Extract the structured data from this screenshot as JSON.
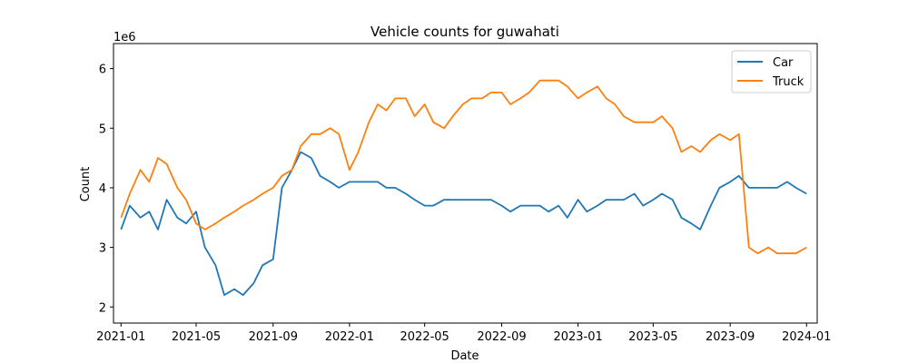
{
  "chart_data": {
    "type": "line",
    "title": "Vehicle counts for guwahati",
    "xlabel": "Date",
    "ylabel": "Count",
    "y_scale_label": "1e6",
    "x_range": [
      "2020-12-20",
      "2024-01-18"
    ],
    "ylim": [
      1.73,
      6.42
    ],
    "x_ticks": [
      "2021-01",
      "2021-05",
      "2021-09",
      "2022-01",
      "2022-05",
      "2022-09",
      "2023-01",
      "2023-05",
      "2023-09",
      "2024-01"
    ],
    "y_ticks": [
      2,
      3,
      4,
      5,
      6
    ],
    "legend_position": "top-right",
    "series": [
      {
        "name": "Car",
        "color": "#1f77b4",
        "dates": [
          "2021-01-01",
          "2021-01-15",
          "2021-02-01",
          "2021-02-15",
          "2021-03-01",
          "2021-03-15",
          "2021-04-01",
          "2021-04-15",
          "2021-05-01",
          "2021-05-15",
          "2021-06-01",
          "2021-06-15",
          "2021-07-01",
          "2021-07-15",
          "2021-08-01",
          "2021-08-15",
          "2021-09-01",
          "2021-09-15",
          "2021-10-01",
          "2021-10-15",
          "2021-11-01",
          "2021-11-15",
          "2021-12-01",
          "2021-12-15",
          "2022-01-01",
          "2022-01-15",
          "2022-02-01",
          "2022-02-15",
          "2022-03-01",
          "2022-03-15",
          "2022-04-01",
          "2022-04-15",
          "2022-05-01",
          "2022-05-15",
          "2022-06-01",
          "2022-06-15",
          "2022-07-01",
          "2022-07-15",
          "2022-08-01",
          "2022-08-15",
          "2022-09-01",
          "2022-09-15",
          "2022-10-01",
          "2022-10-15",
          "2022-11-01",
          "2022-11-15",
          "2022-12-01",
          "2022-12-15",
          "2023-01-01",
          "2023-01-15",
          "2023-02-01",
          "2023-02-15",
          "2023-03-01",
          "2023-03-15",
          "2023-04-01",
          "2023-04-15",
          "2023-05-01",
          "2023-05-15",
          "2023-06-01",
          "2023-06-15",
          "2023-07-01",
          "2023-07-15",
          "2023-08-01",
          "2023-08-15",
          "2023-09-01",
          "2023-09-15",
          "2023-10-01",
          "2023-10-15",
          "2023-11-01",
          "2023-11-15",
          "2023-12-01",
          "2023-12-15",
          "2024-01-01"
        ],
        "values": [
          3.3,
          3.7,
          3.5,
          3.6,
          3.3,
          3.8,
          3.5,
          3.4,
          3.6,
          3.0,
          2.7,
          2.2,
          2.3,
          2.2,
          2.4,
          2.7,
          2.8,
          4.0,
          4.3,
          4.6,
          4.5,
          4.2,
          4.1,
          4.0,
          4.1,
          4.1,
          4.1,
          4.1,
          4.0,
          4.0,
          3.9,
          3.8,
          3.7,
          3.7,
          3.8,
          3.8,
          3.8,
          3.8,
          3.8,
          3.8,
          3.7,
          3.6,
          3.7,
          3.7,
          3.7,
          3.6,
          3.7,
          3.5,
          3.8,
          3.6,
          3.7,
          3.8,
          3.8,
          3.8,
          3.9,
          3.7,
          3.8,
          3.9,
          3.8,
          3.5,
          3.4,
          3.3,
          3.7,
          4.0,
          4.1,
          4.2,
          4.0,
          4.0,
          4.0,
          4.0,
          4.1,
          4.0,
          3.9
        ]
      },
      {
        "name": "Truck",
        "color": "#ff7f0e",
        "dates": [
          "2021-01-01",
          "2021-01-15",
          "2021-02-01",
          "2021-02-15",
          "2021-03-01",
          "2021-03-15",
          "2021-04-01",
          "2021-04-15",
          "2021-05-01",
          "2021-05-15",
          "2021-06-01",
          "2021-06-15",
          "2021-07-01",
          "2021-07-15",
          "2021-08-01",
          "2021-08-15",
          "2021-09-01",
          "2021-09-15",
          "2021-10-01",
          "2021-10-15",
          "2021-11-01",
          "2021-11-15",
          "2021-12-01",
          "2021-12-15",
          "2022-01-01",
          "2022-01-15",
          "2022-02-01",
          "2022-02-15",
          "2022-03-01",
          "2022-03-15",
          "2022-04-01",
          "2022-04-15",
          "2022-05-01",
          "2022-05-15",
          "2022-06-01",
          "2022-06-15",
          "2022-07-01",
          "2022-07-15",
          "2022-08-01",
          "2022-08-15",
          "2022-09-01",
          "2022-09-15",
          "2022-10-01",
          "2022-10-15",
          "2022-11-01",
          "2022-11-15",
          "2022-12-01",
          "2022-12-15",
          "2023-01-01",
          "2023-01-15",
          "2023-02-01",
          "2023-02-15",
          "2023-03-01",
          "2023-03-15",
          "2023-04-01",
          "2023-04-15",
          "2023-05-01",
          "2023-05-15",
          "2023-06-01",
          "2023-06-15",
          "2023-07-01",
          "2023-07-15",
          "2023-08-01",
          "2023-08-15",
          "2023-09-01",
          "2023-09-15",
          "2023-10-01",
          "2023-10-15",
          "2023-11-01",
          "2023-11-15",
          "2023-12-01",
          "2023-12-15",
          "2024-01-01"
        ],
        "values": [
          3.5,
          3.9,
          4.3,
          4.1,
          4.5,
          4.4,
          4.0,
          3.8,
          3.4,
          3.3,
          3.4,
          3.5,
          3.6,
          3.7,
          3.8,
          3.9,
          4.0,
          4.2,
          4.3,
          4.7,
          4.9,
          4.9,
          5.0,
          4.9,
          4.3,
          4.6,
          5.1,
          5.4,
          5.3,
          5.5,
          5.5,
          5.2,
          5.4,
          5.1,
          5.0,
          5.2,
          5.4,
          5.5,
          5.5,
          5.6,
          5.6,
          5.4,
          5.5,
          5.6,
          5.8,
          5.8,
          5.8,
          5.7,
          5.5,
          5.6,
          5.7,
          5.5,
          5.4,
          5.2,
          5.1,
          5.1,
          5.1,
          5.2,
          5.0,
          4.6,
          4.7,
          4.6,
          4.8,
          4.9,
          4.8,
          4.9,
          3.0,
          2.9,
          3.0,
          2.9,
          2.9,
          2.9,
          3.0
        ]
      }
    ]
  }
}
